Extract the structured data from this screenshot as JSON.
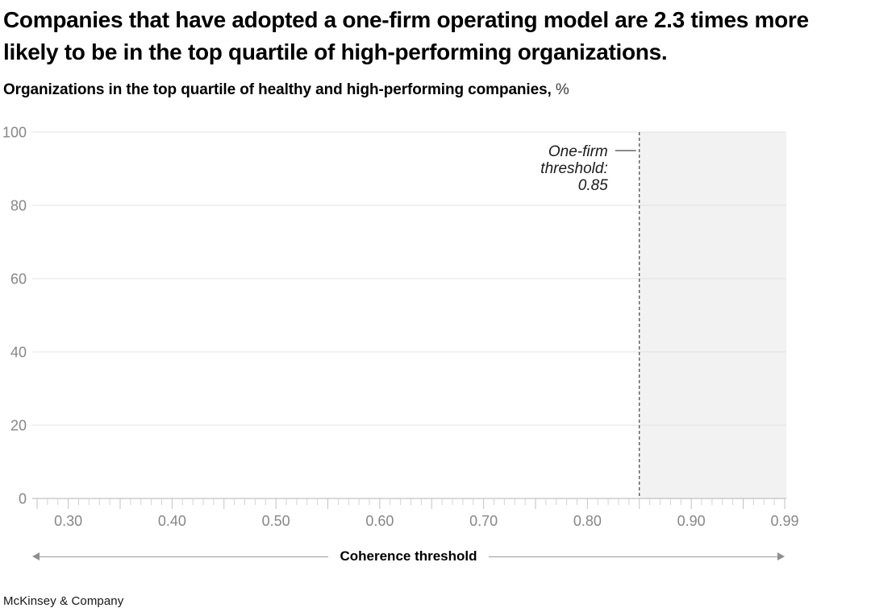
{
  "header": {
    "title": "Companies that have adopted a one-firm operating model are 2.3 times more likely to be in the top quartile of high-performing organizations.",
    "subtitle": "Organizations in the top quartile of healthy and high-performing companies,",
    "subtitle_suffix": "%"
  },
  "footer": {
    "brand": "McKinsey & Company"
  },
  "chart_data": {
    "type": "area",
    "title": "Organizations in the top quartile of healthy and high-performing companies, %",
    "xlabel": "Coherence threshold",
    "ylabel": "",
    "xlim": [
      0.27,
      0.99
    ],
    "ylim": [
      0,
      100
    ],
    "grid": true,
    "y_ticks": [
      0,
      20,
      40,
      60,
      80,
      100
    ],
    "x_major_ticks": [
      0.3,
      0.4,
      0.5,
      0.6,
      0.7,
      0.8,
      0.9,
      0.99
    ],
    "x_tick_labels": [
      "0.30",
      "0.40",
      "0.50",
      "0.60",
      "0.70",
      "0.80",
      "0.90",
      "0.99"
    ],
    "x_minor_step": 0.01,
    "series": [],
    "threshold": {
      "value": 0.85,
      "label_lines": [
        "One-firm",
        "threshold:",
        "0.85"
      ],
      "shaded_region": [
        0.85,
        0.99
      ]
    }
  },
  "colors": {
    "title": "#000000",
    "axis_label": "#878787",
    "gridline": "#e3e3e3",
    "baseline": "#b3b3b3",
    "tick_minor": "#d2d2d2",
    "tick_major": "#c2c2c2",
    "shaded": "#f2f2f2",
    "threshold_line": "#333333",
    "annotation": "#1a1a1a",
    "arrow": "#9a9a9a"
  }
}
